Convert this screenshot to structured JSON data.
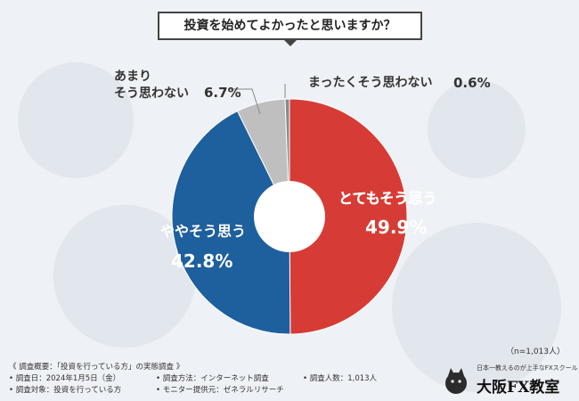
{
  "title": "投資を始めてよかったと思いますか？",
  "chart_data": {
    "type": "pie",
    "variant": "donut",
    "categories": [
      "とてもそう思う",
      "ややそう思う",
      "あまりそう思わない",
      "まったくそう思わない"
    ],
    "values": [
      49.9,
      42.8,
      6.7,
      0.6
    ],
    "value_labels": [
      "49.9%",
      "42.8%",
      "6.7%",
      "0.6%"
    ],
    "colors": [
      "#d63c35",
      "#1e5f9e",
      "#bfbfbf",
      "#8a8a8a"
    ],
    "annotations": {
      "small_label_1": "あまり",
      "small_label_2": "そう思わない",
      "tiny_label": "まったくそう思わない"
    }
  },
  "sample_size": "（n=1,013人）",
  "footer": {
    "r1": "《 調査概要：「投資を行っている方」の実態調査 》",
    "r2a": "• 調査日：2024年1月5日（金）",
    "r2b": "• 調査方法：インターネット調査",
    "r2c": "• 調査人数：1,013人",
    "r3a": "• 調査対象：投資を行っている方",
    "r3b": "• モニター提供元：ゼネラルリサーチ"
  },
  "brand": {
    "tagline": "日本一教えるのが上手なFXスクール",
    "name": "大阪FX教室"
  }
}
